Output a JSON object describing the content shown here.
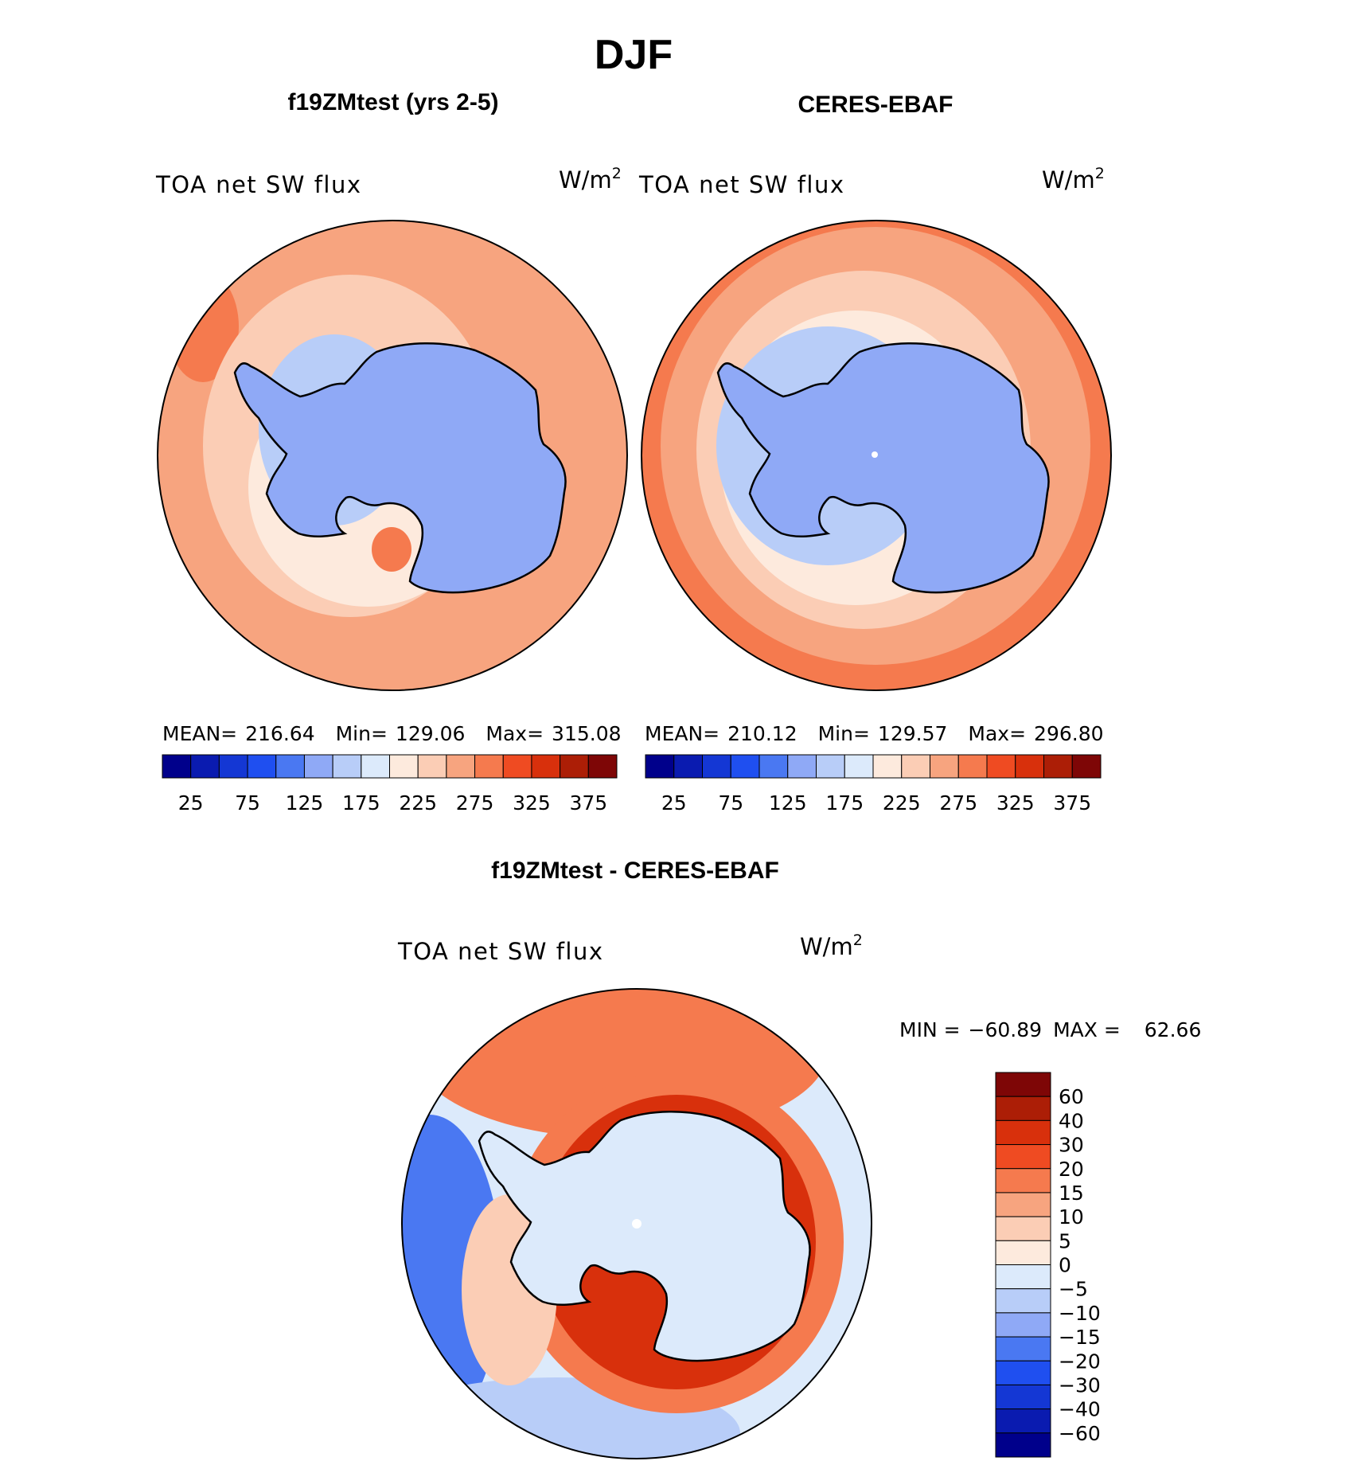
{
  "figure": {
    "title": "DJF",
    "left_panel_title": "f19ZMtest (yrs 2-5)",
    "right_panel_title": "CERES-EBAF",
    "diff_panel_title": "f19ZMtest - CERES-EBAF"
  },
  "chart_data": [
    {
      "type": "heatmap",
      "projection": "south-polar-stereographic",
      "title": "f19ZMtest (yrs 2-5)",
      "variable": "TOA net SW flux",
      "units_base": "W/m",
      "units_exp": "2",
      "stats": {
        "mean_label": "MEAN=",
        "mean": "216.64",
        "min_label": "Min=",
        "min": "129.06",
        "max_label": "Max=",
        "max": "315.08"
      },
      "colorbar": {
        "orientation": "horizontal",
        "levels": [
          25,
          50,
          75,
          100,
          125,
          150,
          175,
          200,
          225,
          250,
          275,
          300,
          325,
          350,
          375
        ],
        "tick_labels": [
          "25",
          "75",
          "125",
          "175",
          "225",
          "275",
          "325",
          "375"
        ]
      }
    },
    {
      "type": "heatmap",
      "projection": "south-polar-stereographic",
      "title": "CERES-EBAF",
      "variable": "TOA net SW flux",
      "units_base": "W/m",
      "units_exp": "2",
      "stats": {
        "mean_label": "MEAN=",
        "mean": "210.12",
        "min_label": "Min=",
        "min": "129.57",
        "max_label": "Max=",
        "max": "296.80"
      },
      "colorbar": {
        "orientation": "horizontal",
        "levels": [
          25,
          50,
          75,
          100,
          125,
          150,
          175,
          200,
          225,
          250,
          275,
          300,
          325,
          350,
          375
        ],
        "tick_labels": [
          "25",
          "75",
          "125",
          "175",
          "225",
          "275",
          "325",
          "375"
        ]
      }
    },
    {
      "type": "heatmap",
      "projection": "south-polar-stereographic",
      "title": "f19ZMtest - CERES-EBAF",
      "variable": "TOA net SW flux",
      "units_base": "W/m",
      "units_exp": "2",
      "stats": {
        "min_label": "MIN =",
        "min": "−60.89",
        "max_label": "MAX =",
        "max": "62.66"
      },
      "colorbar": {
        "orientation": "vertical",
        "levels": [
          60,
          40,
          30,
          20,
          15,
          10,
          5,
          0,
          -5,
          -10,
          -15,
          -20,
          -30,
          -40,
          -60
        ],
        "tick_labels": [
          "60",
          "40",
          "30",
          "20",
          "15",
          "10",
          "5",
          "0",
          "−5",
          "−10",
          "−15",
          "−20",
          "−30",
          "−40",
          "−60"
        ]
      }
    }
  ],
  "palette": [
    "#00008b",
    "#0a1bb0",
    "#1437d4",
    "#1f4ff0",
    "#4a78f2",
    "#8fa9f6",
    "#b8cdf8",
    "#dceafb",
    "#fdeadd",
    "#fbcdb5",
    "#f7a47f",
    "#f57a4e",
    "#ef4b22",
    "#d8300c",
    "#ac1e06",
    "#7e0606"
  ],
  "map_colors": {
    "ice": "#8fa9f6",
    "ice_light": "#b8cdf8",
    "ocean_far": "#f7a47f",
    "ocean_mid": "#fbcdb5",
    "ocean_near": "#fdeadd",
    "ocean_warm": "#f57a4e",
    "diff_bg": "#dceafb",
    "diff_pos1": "#fbcdb5",
    "diff_pos2": "#f57a4e",
    "diff_pos3": "#d8300c",
    "diff_neg1": "#b8cdf8",
    "diff_neg2": "#4a78f2",
    "coast": "#000000"
  }
}
